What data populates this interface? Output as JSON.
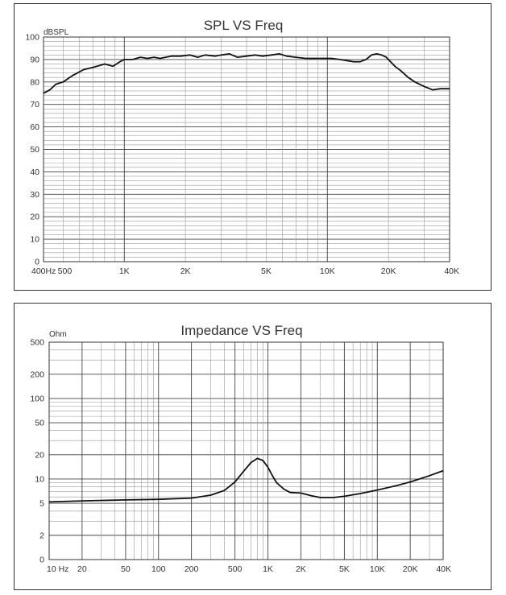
{
  "chart_data": [
    {
      "type": "line",
      "title": "SPL VS Freq",
      "ylabel": "dBSPL",
      "xlabel": "",
      "x_scale": "log",
      "xlim": [
        400,
        40000
      ],
      "ylim": [
        0,
        100
      ],
      "grid": true,
      "x_tick_values": [
        400,
        500,
        1000,
        2000,
        5000,
        10000,
        20000,
        40000
      ],
      "x_tick_labels": [
        "400Hz",
        "500",
        "1K",
        "2K",
        "5K",
        "10K",
        "20K",
        "40K"
      ],
      "y_tick_values": [
        0,
        10,
        20,
        30,
        40,
        50,
        60,
        70,
        80,
        90,
        100
      ],
      "y_tick_labels": [
        "0",
        "10",
        "20",
        "30",
        "40",
        "50",
        "60",
        "70",
        "80",
        "90",
        "100"
      ],
      "series": [
        {
          "x": [
            400,
            430,
            460,
            500,
            560,
            630,
            700,
            800,
            880,
            950,
            1000,
            1100,
            1200,
            1300,
            1400,
            1500,
            1700,
            1900,
            2100,
            2300,
            2500,
            2800,
            3000,
            3300,
            3600,
            4000,
            4400,
            4800,
            5300,
            5800,
            6300,
            7000,
            7800,
            8500,
            9500,
            10500,
            11500,
            12500,
            13500,
            14500,
            15500,
            16500,
            17500,
            18500,
            19500,
            20500,
            21500,
            23000,
            25000,
            27000,
            30000,
            33000,
            36000,
            40000
          ],
          "y": [
            75,
            76.5,
            79,
            80,
            83,
            85.5,
            86.5,
            88,
            87,
            89,
            90,
            90,
            91,
            90.5,
            91,
            90.5,
            91.5,
            91.5,
            92,
            91,
            92,
            91.5,
            92,
            92.5,
            91,
            91.5,
            92,
            91.5,
            92,
            92.5,
            91.5,
            91,
            90.5,
            90.5,
            90.5,
            90.5,
            90,
            89.5,
            89,
            89,
            90,
            92,
            92.5,
            92,
            91,
            89,
            87,
            85,
            82,
            80,
            78,
            76.5,
            77,
            77
          ]
        }
      ]
    },
    {
      "type": "line",
      "title": "Impedance VS Freq",
      "ylabel": "Ohm",
      "xlabel": "",
      "x_scale": "log",
      "y_scale": "log",
      "xlim": [
        10,
        40000
      ],
      "ylim": [
        0,
        500
      ],
      "grid": true,
      "x_tick_values": [
        10,
        20,
        50,
        100,
        200,
        500,
        1000,
        2000,
        5000,
        10000,
        20000,
        40000
      ],
      "x_tick_labels": [
        "10 Hz",
        "20",
        "50",
        "100",
        "200",
        "500",
        "1K",
        "2K",
        "5K",
        "10K",
        "20K",
        "40K"
      ],
      "y_tick_values": [
        500,
        200,
        100,
        50,
        20,
        10,
        5,
        2,
        0
      ],
      "y_tick_labels": [
        "500",
        "200",
        "100",
        "50",
        "20",
        "10",
        "5",
        "2",
        "0"
      ],
      "series": [
        {
          "x": [
            10,
            20,
            50,
            100,
            200,
            300,
            400,
            500,
            600,
            700,
            800,
            900,
            1000,
            1100,
            1200,
            1400,
            1600,
            2000,
            2500,
            3000,
            4000,
            5000,
            7000,
            10000,
            15000,
            20000,
            30000,
            40000
          ],
          "y": [
            5.2,
            5.35,
            5.5,
            5.6,
            5.8,
            6.3,
            7.2,
            9.2,
            12.5,
            16,
            18,
            17,
            14,
            11,
            9,
            7.5,
            6.8,
            6.7,
            6.2,
            5.9,
            5.9,
            6.1,
            6.6,
            7.3,
            8.3,
            9.2,
            11,
            12.7
          ]
        }
      ]
    }
  ]
}
